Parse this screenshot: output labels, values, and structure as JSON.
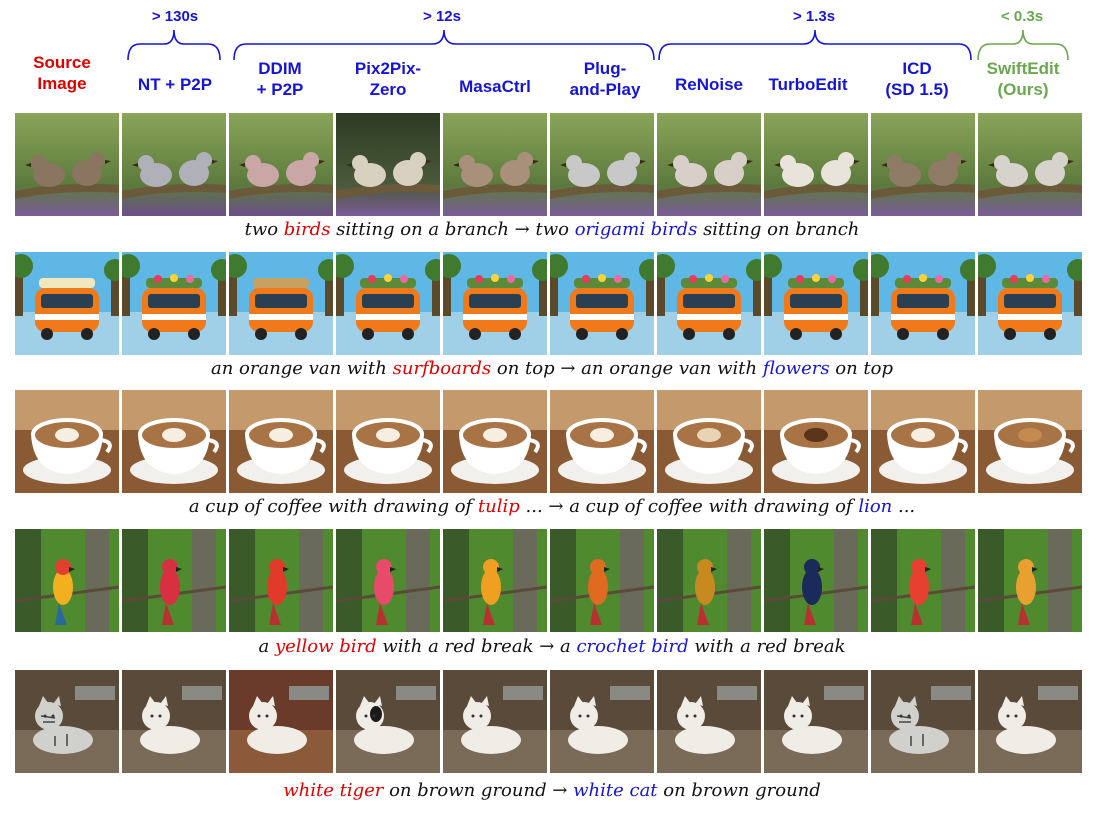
{
  "timings": [
    {
      "label": "> 130s",
      "color": "#1515d6"
    },
    {
      "label": "> 12s",
      "color": "#1515d6"
    },
    {
      "label": "> 1.3s",
      "color": "#1515d6"
    },
    {
      "label": "< 0.3s",
      "color": "#6aa84f"
    }
  ],
  "columns": [
    {
      "line1": "Source",
      "line2": "Image",
      "color": "red"
    },
    {
      "line1": "NT + P2P",
      "line2": "",
      "color": "blue"
    },
    {
      "line1": "DDIM",
      "line2": "+ P2P",
      "color": "blue"
    },
    {
      "line1": "Pix2Pix-",
      "line2": "Zero",
      "color": "blue"
    },
    {
      "line1": "MasaCtrl",
      "line2": "",
      "color": "blue"
    },
    {
      "line1": "Plug-",
      "line2": "and-Play",
      "color": "blue"
    },
    {
      "line1": "ReNoise",
      "line2": "",
      "color": "blue"
    },
    {
      "line1": "TurboEdit",
      "line2": "",
      "color": "blue"
    },
    {
      "line1": "ICD",
      "line2": "(SD 1.5)",
      "color": "blue"
    },
    {
      "line1": "SwiftEdit",
      "line2": "(Ours)",
      "color": "green"
    }
  ],
  "rows": [
    {
      "caption": {
        "pre": "two ",
        "src": "birds",
        "mid": " sitting on a branch → two ",
        "tgt": "origami birds",
        "post": " sitting on branch"
      },
      "subject": "birds"
    },
    {
      "caption": {
        "pre": "an orange van with ",
        "src": "surfboards",
        "mid": " on top → an orange van with ",
        "tgt": "flowers",
        "post": " on top"
      },
      "subject": "van"
    },
    {
      "caption": {
        "pre": "a cup of coffee with drawing of ",
        "src": "tulip",
        "mid": " ... → a cup of coffee with drawing of ",
        "tgt": "lion",
        "post": " ..."
      },
      "subject": "coffee"
    },
    {
      "caption": {
        "pre": "a ",
        "src": "yellow bird",
        "mid": " with a red break → a ",
        "tgt": "crochet bird",
        "post": " with a red break"
      },
      "subject": "parrot"
    },
    {
      "caption": {
        "pre": "",
        "src": "white tiger",
        "mid": " on brown ground → ",
        "tgt": "white cat",
        "post": " on brown ground"
      },
      "subject": "cat"
    }
  ]
}
